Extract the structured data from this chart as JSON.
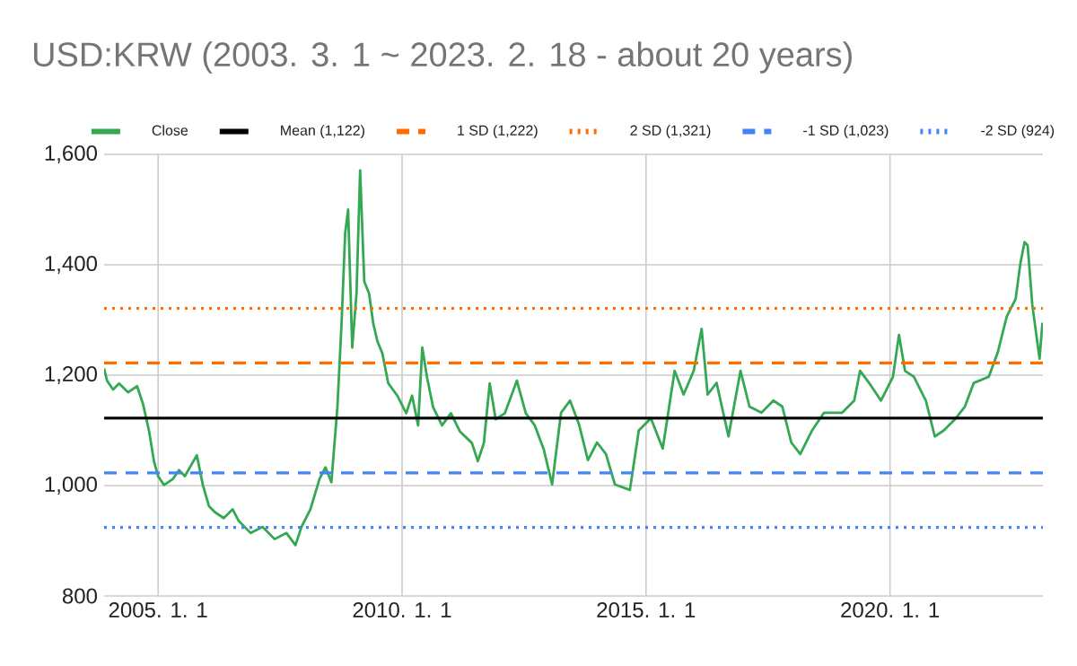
{
  "chart_data": {
    "type": "line",
    "title": "USD:KRW (2003. 3. 1 ~ 2023. 2. 18 - about 20 years)",
    "xlim": [
      "2003-11-24",
      "2023-02-18"
    ],
    "xticks": [
      {
        "value": "2005-01-01",
        "label": "2005. 1. 1"
      },
      {
        "value": "2010-01-01",
        "label": "2010. 1. 1"
      },
      {
        "value": "2015-01-01",
        "label": "2015. 1. 1"
      },
      {
        "value": "2020-01-01",
        "label": "2020. 1. 1"
      }
    ],
    "ylim": [
      800,
      1600
    ],
    "yticks": [
      {
        "value": 800,
        "label": "800"
      },
      {
        "value": 1000,
        "label": "1,000"
      },
      {
        "value": 1200,
        "label": "1,200"
      },
      {
        "value": 1400,
        "label": "1,400"
      },
      {
        "value": 1600,
        "label": "1,600"
      }
    ],
    "grid": true,
    "legend": "top",
    "series": [
      {
        "name": "Close",
        "color": "#34a853",
        "x": [
          "2003-11-24",
          "2003-12-16",
          "2004-01-30",
          "2004-03-15",
          "2004-05-21",
          "2004-07-28",
          "2004-09-11",
          "2004-10-26",
          "2004-12-01",
          "2005-01-01",
          "2005-02-14",
          "2005-04-22",
          "2005-06-06",
          "2005-07-20",
          "2005-10-18",
          "2005-12-02",
          "2006-01-16",
          "2006-03-01",
          "2006-05-07",
          "2006-07-13",
          "2006-08-27",
          "2006-11-25",
          "2007-02-22",
          "2007-05-23",
          "2007-08-20",
          "2007-10-26",
          "2007-12-10",
          "2008-02-15",
          "2008-04-23",
          "2008-06-07",
          "2008-07-21",
          "2008-09-04",
          "2008-10-05",
          "2008-11-01",
          "2008-11-23",
          "2008-12-24",
          "2009-01-25",
          "2009-02-21",
          "2009-03-24",
          "2009-04-29",
          "2009-05-30",
          "2009-07-01",
          "2009-08-06",
          "2009-09-20",
          "2009-11-26",
          "2010-02-01",
          "2010-03-17",
          "2010-05-01",
          "2010-06-01",
          "2010-07-07",
          "2010-08-21",
          "2010-10-27",
          "2011-01-02",
          "2011-03-10",
          "2011-06-08",
          "2011-07-22",
          "2011-09-05",
          "2011-10-19",
          "2011-12-03",
          "2012-02-09",
          "2012-05-09",
          "2012-07-15",
          "2012-09-20",
          "2012-11-26",
          "2013-01-28",
          "2013-04-05",
          "2013-06-11",
          "2013-08-17",
          "2013-10-23",
          "2013-12-30",
          "2014-03-07",
          "2014-05-13",
          "2014-09-02",
          "2014-11-08",
          "2015-02-06",
          "2015-05-06",
          "2015-08-03",
          "2015-10-09",
          "2015-12-24",
          "2016-02-21",
          "2016-04-06",
          "2016-06-12",
          "2016-09-09",
          "2016-12-08",
          "2017-02-13",
          "2017-05-14",
          "2017-08-11",
          "2017-10-17",
          "2017-12-23",
          "2018-02-28",
          "2018-05-28",
          "2018-08-25",
          "2019-01-08",
          "2019-04-08",
          "2019-05-22",
          "2019-07-28",
          "2019-10-25",
          "2020-01-23",
          "2020-03-08",
          "2020-04-22",
          "2020-06-28",
          "2020-09-25",
          "2020-12-01",
          "2021-02-07",
          "2021-05-08",
          "2021-07-14",
          "2021-09-19",
          "2022-01-09",
          "2022-03-17",
          "2022-05-23",
          "2022-07-29",
          "2022-09-03",
          "2022-10-04",
          "2022-10-27",
          "2022-12-01",
          "2023-01-24",
          "2023-02-15"
        ],
        "values": [
          1212,
          1190,
          1174,
          1185,
          1169,
          1180,
          1147,
          1098,
          1044,
          1017,
          1001,
          1012,
          1028,
          1017,
          1055,
          1001,
          963,
          952,
          941,
          957,
          936,
          914,
          925,
          903,
          914,
          892,
          925,
          957,
          1012,
          1033,
          1006,
          1142,
          1294,
          1457,
          1500,
          1250,
          1348,
          1571,
          1370,
          1348,
          1294,
          1261,
          1240,
          1185,
          1163,
          1131,
          1163,
          1109,
          1250,
          1196,
          1142,
          1109,
          1131,
          1098,
          1077,
          1044,
          1077,
          1185,
          1120,
          1131,
          1190,
          1131,
          1109,
          1066,
          1002,
          1132,
          1154,
          1111,
          1046,
          1078,
          1057,
          1002,
          992,
          1100,
          1122,
          1067,
          1208,
          1165,
          1208,
          1284,
          1165,
          1186,
          1089,
          1208,
          1143,
          1132,
          1154,
          1143,
          1078,
          1057,
          1100,
          1132,
          1132,
          1154,
          1208,
          1186,
          1154,
          1197,
          1273,
          1208,
          1197,
          1154,
          1089,
          1100,
          1122,
          1143,
          1186,
          1197,
          1241,
          1306,
          1338,
          1403,
          1441,
          1435,
          1327,
          1230,
          1295
        ]
      }
    ],
    "ref_lines": [
      {
        "axis": "y",
        "value": 1122,
        "label": "Mean (1,122)",
        "color": "#000000",
        "line_style": "solid"
      },
      {
        "axis": "y",
        "value": 1222,
        "label": "1 SD (1,222)",
        "color": "#ff6d01",
        "line_style": "dashed"
      },
      {
        "axis": "y",
        "value": 1321,
        "label": "2 SD (1,321)",
        "color": "#ff6d01",
        "line_style": "dotted"
      },
      {
        "axis": "y",
        "value": 1023,
        "label": "-1 SD (1,023)",
        "color": "#4285f4",
        "line_style": "dashed"
      },
      {
        "axis": "y",
        "value": 924,
        "label": "-2 SD (924)",
        "color": "#4285f4",
        "line_style": "dotted"
      }
    ]
  }
}
